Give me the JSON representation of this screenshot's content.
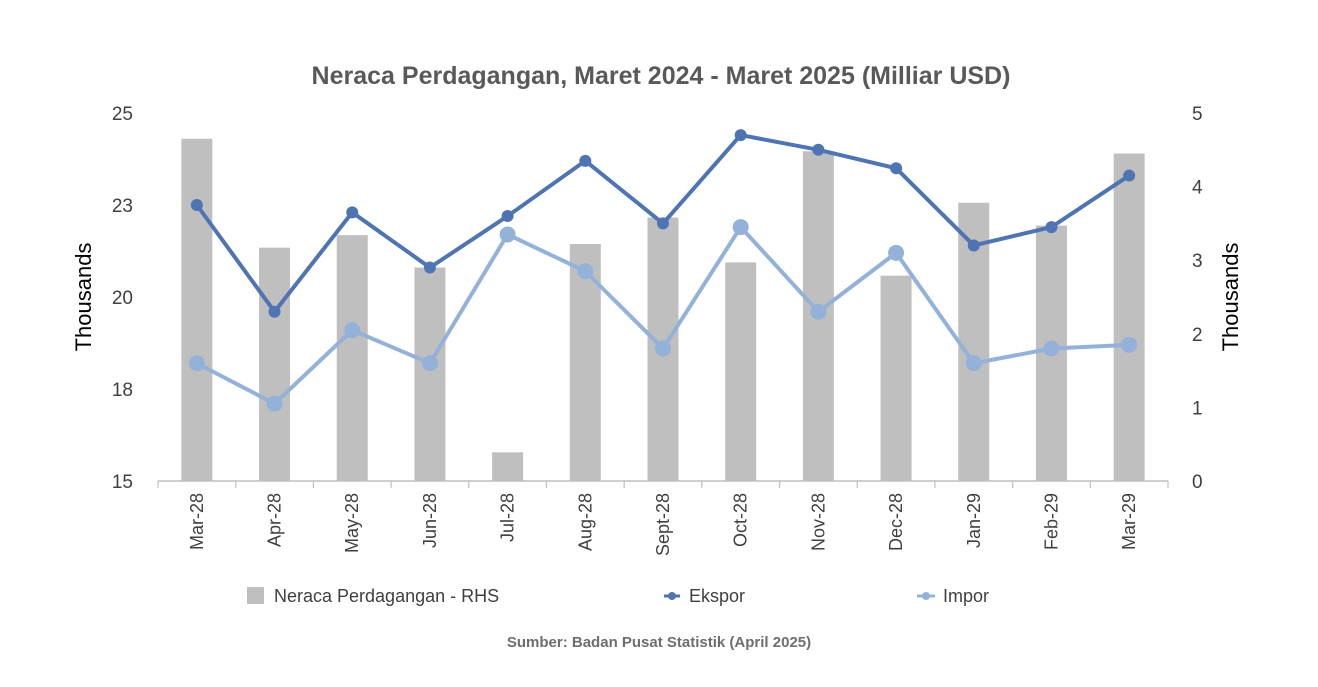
{
  "chart_data": {
    "type": "bar+line",
    "title": "Neraca Perdagangan, Maret 2024 - Maret 2025 (Milliar USD)",
    "categories": [
      "Mar-28",
      "Apr-28",
      "May-28",
      "Jun-28",
      "Jul-28",
      "Aug-28",
      "Sept-28",
      "Oct-28",
      "Nov-28",
      "Dec-28",
      "Jan-29",
      "Feb-29",
      "Mar-29"
    ],
    "left_axis": {
      "title": "Thousands",
      "ylim": [
        15,
        25
      ],
      "ticks": [
        "25",
        "23",
        "20",
        "18",
        "15"
      ],
      "tick_values": [
        25,
        22.5,
        20,
        17.5,
        15
      ]
    },
    "right_axis": {
      "title": "Thousands",
      "ylim": [
        0,
        5
      ],
      "ticks": [
        "5",
        "4",
        "3",
        "2",
        "1",
        "0"
      ],
      "tick_values": [
        5,
        4,
        3,
        2,
        1,
        0
      ]
    },
    "series": [
      {
        "name": "Neraca Perdagangan - RHS",
        "type": "bar",
        "axis": "right",
        "color": "#bfbfbf",
        "values": [
          4.65,
          3.17,
          3.34,
          2.9,
          0.39,
          3.22,
          3.58,
          2.97,
          4.48,
          2.79,
          3.78,
          3.47,
          4.45
        ]
      },
      {
        "name": "Ekspor",
        "type": "line",
        "axis": "left",
        "color": "#4f74b3",
        "values": [
          22.5,
          19.6,
          22.3,
          20.8,
          22.2,
          23.7,
          22.0,
          24.4,
          24.0,
          23.5,
          21.4,
          21.9,
          23.3
        ]
      },
      {
        "name": "Impor",
        "type": "line",
        "axis": "left",
        "color": "#94b1d9",
        "values": [
          18.2,
          17.1,
          19.1,
          18.2,
          21.7,
          20.7,
          18.6,
          21.9,
          19.6,
          21.2,
          18.2,
          18.6,
          18.7
        ]
      }
    ],
    "legend": {
      "position": "bottom"
    },
    "grid": false
  },
  "source_note": "Sumber: Badan Pusat Statistik (April 2025)"
}
